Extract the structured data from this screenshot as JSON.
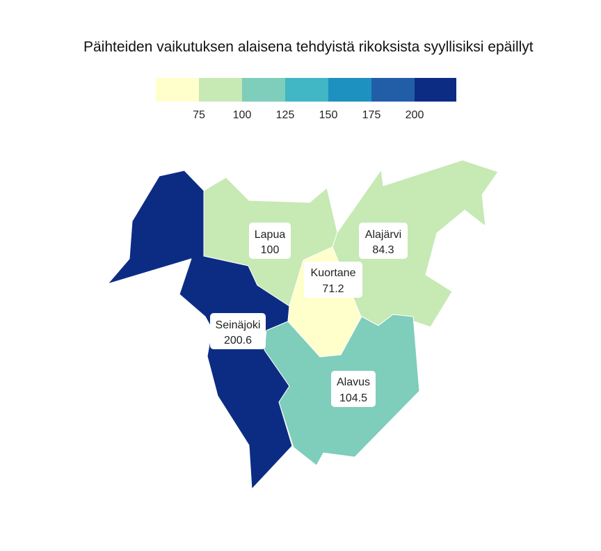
{
  "title": "Päihteiden vaikutuksen alaisena tehdyistä rikoksista syyllisiksi epäillyt",
  "legend": {
    "colors": [
      "#ffffcc",
      "#c7e9b4",
      "#7fcdbb",
      "#41b6c4",
      "#1d91c0",
      "#225ea8",
      "#0c2c84"
    ],
    "ticks": [
      "75",
      "100",
      "125",
      "150",
      "175",
      "200"
    ]
  },
  "regions": [
    {
      "name": "Seinäjoki",
      "value": "200.6",
      "color": "#0c2c84"
    },
    {
      "name": "Lapua",
      "value": "100",
      "color": "#c7e9b4"
    },
    {
      "name": "Alajärvi",
      "value": "84.3",
      "color": "#c7e9b4"
    },
    {
      "name": "Kuortane",
      "value": "71.2",
      "color": "#ffffcc"
    },
    {
      "name": "Alavus",
      "value": "104.5",
      "color": "#7fcdbb"
    }
  ]
}
